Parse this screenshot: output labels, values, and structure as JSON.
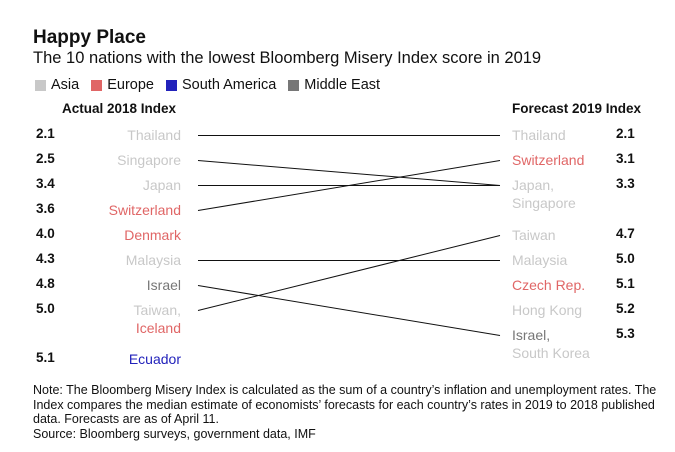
{
  "title": "Happy Place",
  "subtitle": "The 10 nations with the lowest Bloomberg Misery Index score in 2019",
  "colors": {
    "Asia": "#c8c8c8",
    "Europe": "#e06666",
    "South America": "#2222bb",
    "Middle East": "#777777"
  },
  "legend": [
    {
      "name": "Asia",
      "color": "#c8c8c8"
    },
    {
      "name": "Europe",
      "color": "#e06666"
    },
    {
      "name": "South America",
      "color": "#2222bb"
    },
    {
      "name": "Middle East",
      "color": "#777777"
    }
  ],
  "note": "Note: The Bloomberg Misery Index is calculated as the sum of a country’s inflation and unemployment rates. The Index compares the median estimate of economists’ forecasts for each country’s rates in 2019 to 2018 published data. Forecasts are as of April 11.",
  "source": "Source: Bloomberg surveys, government data, IMF",
  "chart_data": {
    "type": "slope",
    "left_header": "Actual 2018 Index",
    "right_header": "Forecast 2019 Index",
    "left": [
      {
        "value": "2.1",
        "countries": [
          {
            "name": "Thailand",
            "region": "Asia"
          }
        ]
      },
      {
        "value": "2.5",
        "countries": [
          {
            "name": "Singapore",
            "region": "Asia"
          }
        ]
      },
      {
        "value": "3.4",
        "countries": [
          {
            "name": "Japan",
            "region": "Asia"
          }
        ]
      },
      {
        "value": "3.6",
        "countries": [
          {
            "name": "Switzerland",
            "region": "Europe"
          }
        ]
      },
      {
        "value": "4.0",
        "countries": [
          {
            "name": "Denmark",
            "region": "Europe"
          }
        ]
      },
      {
        "value": "4.3",
        "countries": [
          {
            "name": "Malaysia",
            "region": "Asia"
          }
        ]
      },
      {
        "value": "4.8",
        "countries": [
          {
            "name": "Israel",
            "region": "Middle East"
          }
        ]
      },
      {
        "value": "5.0",
        "countries": [
          {
            "name": "Taiwan,",
            "region": "Asia"
          },
          {
            "name": "Iceland",
            "region": "Europe"
          }
        ]
      },
      {
        "value": "5.1",
        "countries": [
          {
            "name": "Ecuador",
            "region": "South America"
          }
        ]
      }
    ],
    "right": [
      {
        "value": "2.1",
        "countries": [
          {
            "name": "Thailand",
            "region": "Asia"
          }
        ]
      },
      {
        "value": "3.1",
        "countries": [
          {
            "name": "Switzerland",
            "region": "Europe"
          }
        ]
      },
      {
        "value": "3.3",
        "countries": [
          {
            "name": "Japan,",
            "region": "Asia"
          },
          {
            "name": "Singapore",
            "region": "Asia"
          }
        ]
      },
      {
        "value": "4.7",
        "countries": [
          {
            "name": "Taiwan",
            "region": "Asia"
          }
        ]
      },
      {
        "value": "5.0",
        "countries": [
          {
            "name": "Malaysia",
            "region": "Asia"
          }
        ]
      },
      {
        "value": "5.1",
        "countries": [
          {
            "name": "Czech Rep.",
            "region": "Europe"
          }
        ]
      },
      {
        "value": "5.2",
        "countries": [
          {
            "name": "Hong Kong",
            "region": "Asia"
          }
        ]
      },
      {
        "value": "5.3",
        "countries": [
          {
            "name": "Israel,",
            "region": "Middle East"
          },
          {
            "name": "South Korea",
            "region": "Asia"
          }
        ]
      }
    ],
    "connections": [
      {
        "country": "Thailand",
        "from": 0,
        "to": 0
      },
      {
        "country": "Singapore",
        "from": 1,
        "to": 2
      },
      {
        "country": "Japan",
        "from": 2,
        "to": 2
      },
      {
        "country": "Switzerland",
        "from": 3,
        "to": 1
      },
      {
        "country": "Malaysia",
        "from": 5,
        "to": 4
      },
      {
        "country": "Israel",
        "from": 6,
        "to": 7
      },
      {
        "country": "Taiwan",
        "from": 7,
        "to": 3
      }
    ]
  }
}
